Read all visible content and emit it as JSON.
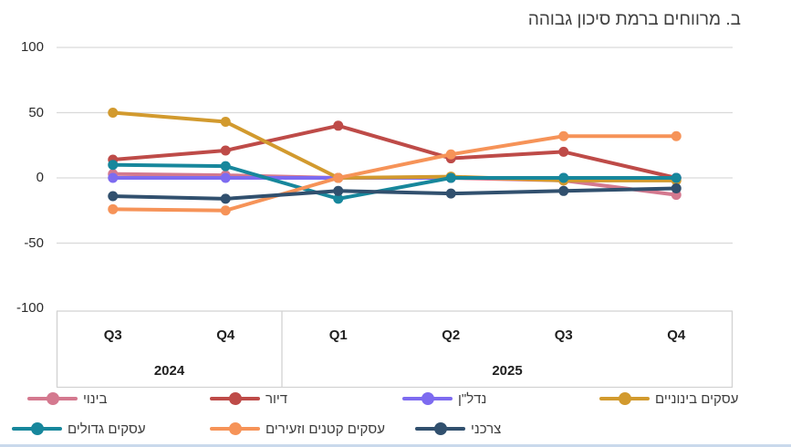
{
  "title": "ב. מרווחים ברמת סיכון גבוהה",
  "chart_data": {
    "type": "line",
    "title": "ב. מרווחים ברמת סיכון גבוהה",
    "categories": [
      "Q3",
      "Q4",
      "Q1",
      "Q2",
      "Q3",
      "Q4"
    ],
    "year_groups": [
      {
        "label": "2024",
        "quarters": 2
      },
      {
        "label": "2025",
        "quarters": 4
      }
    ],
    "ylim": [
      -100,
      100
    ],
    "yticks": [
      100,
      50,
      0,
      -50,
      -100
    ],
    "grid": true,
    "legend_position": "bottom",
    "gridline_color": "#d9d9d9",
    "axis_table_border_color": "#d2d2d2",
    "series": [
      {
        "name": "בינוי",
        "slug": "construction",
        "color": "#d4798f",
        "values": [
          3,
          2,
          0,
          0,
          -2,
          -13
        ]
      },
      {
        "name": "דיור",
        "slug": "housing",
        "color": "#be4b48",
        "values": [
          14,
          21,
          40,
          15,
          20,
          0
        ]
      },
      {
        "name": "נדל\"ן",
        "slug": "real-estate",
        "color": "#7d6bf0",
        "values": [
          0,
          0,
          0,
          0,
          0,
          0
        ]
      },
      {
        "name": "עסקים בינוניים",
        "slug": "medium-businesses",
        "color": "#d29a2e",
        "values": [
          50,
          43,
          0,
          1,
          -2,
          -2
        ]
      },
      {
        "name": "עסקים גדולים",
        "slug": "large-businesses",
        "color": "#17879c",
        "values": [
          10,
          9,
          -16,
          0,
          0,
          0
        ]
      },
      {
        "name": "עסקים קטנים וזעירים",
        "slug": "small-micro-businesses",
        "color": "#f69358",
        "values": [
          -24,
          -25,
          0,
          18,
          32,
          32
        ]
      },
      {
        "name": "צרכני",
        "slug": "consumer",
        "color": "#31506e",
        "values": [
          -14,
          -16,
          -10,
          -12,
          -10,
          -8
        ]
      }
    ]
  }
}
